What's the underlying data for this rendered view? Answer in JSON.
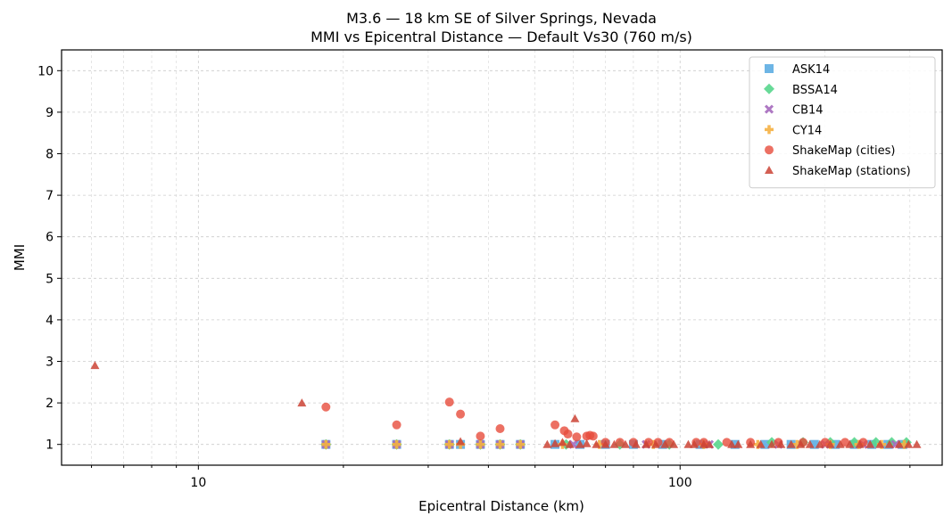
{
  "chart_data": {
    "type": "scatter",
    "title": "M3.6 — 18 km SE of Silver Springs, Nevada",
    "subtitle": "MMI vs Epicentral Distance — Default Vs30 (760 m/s)",
    "xlabel": "Epicentral Distance (km)",
    "ylabel": "MMI",
    "xscale": "log",
    "xlim": [
      5.2,
      350
    ],
    "ylim": [
      0.5,
      10.5
    ],
    "x_ticks": [
      10,
      100
    ],
    "y_ticks": [
      1,
      2,
      3,
      4,
      5,
      6,
      7,
      8,
      9,
      10
    ],
    "grid": true,
    "legend_position": "top-right",
    "series": [
      {
        "name": "ASK14",
        "marker": "square",
        "color": "#5DADE2",
        "x": [
          18.4,
          25.8,
          33.2,
          35.0,
          38.5,
          42.3,
          46.6,
          55,
          62,
          70,
          80,
          92,
          110,
          130,
          150,
          170,
          190,
          210,
          230,
          250,
          270,
          290
        ],
        "y": [
          1.0,
          1.0,
          1.0,
          1.0,
          1.0,
          1.0,
          1.0,
          1.0,
          1.0,
          1.0,
          1.0,
          1.0,
          1.0,
          1.0,
          1.0,
          1.0,
          1.0,
          1.0,
          1.0,
          1.0,
          1.0,
          1.0
        ]
      },
      {
        "name": "BSSA14",
        "marker": "diamond",
        "color": "#58D68D",
        "x": [
          18.4,
          25.8,
          33.2,
          38.5,
          42.3,
          46.6,
          58,
          75,
          95,
          120,
          155,
          180,
          205,
          230,
          255,
          275,
          295
        ],
        "y": [
          1.0,
          1.0,
          1.0,
          1.0,
          1.0,
          1.0,
          1.0,
          1.0,
          1.0,
          1.0,
          1.05,
          1.05,
          1.05,
          1.05,
          1.05,
          1.05,
          1.05
        ]
      },
      {
        "name": "CB14",
        "marker": "x",
        "color": "#A569BD",
        "x": [
          18.4,
          25.8,
          33.2,
          38.5,
          42.3,
          46.6,
          60,
          85,
          115,
          160,
          200,
          240,
          280
        ],
        "y": [
          1.0,
          1.0,
          1.0,
          1.0,
          1.0,
          1.0,
          1.0,
          1.0,
          1.0,
          1.0,
          1.0,
          1.0,
          1.0
        ]
      },
      {
        "name": "CY14",
        "marker": "plus",
        "color": "#F5B041",
        "x": [
          18.4,
          25.8,
          33.2,
          35.0,
          38.5,
          42.3,
          46.6,
          57,
          68,
          88,
          112,
          145,
          175,
          205,
          235,
          262,
          292
        ],
        "y": [
          1.0,
          1.0,
          1.0,
          1.0,
          1.0,
          1.0,
          1.0,
          1.0,
          1.0,
          1.0,
          1.0,
          1.0,
          1.0,
          1.0,
          1.0,
          1.0,
          1.0
        ]
      },
      {
        "name": "ShakeMap (cities)",
        "marker": "circle",
        "color": "#E74C3C",
        "x": [
          18.4,
          25.8,
          33.2,
          35.0,
          38.5,
          42.3,
          55.0,
          57.5,
          58.5,
          61.0,
          64.0,
          65.0,
          66.0,
          70,
          75,
          80,
          86,
          90,
          95,
          108,
          112,
          125,
          140,
          160,
          180,
          200,
          220,
          240
        ],
        "y": [
          1.9,
          1.47,
          2.02,
          1.73,
          1.2,
          1.38,
          1.47,
          1.33,
          1.25,
          1.18,
          1.2,
          1.22,
          1.2,
          1.05,
          1.05,
          1.05,
          1.05,
          1.05,
          1.05,
          1.05,
          1.05,
          1.05,
          1.05,
          1.05,
          1.05,
          1.05,
          1.05,
          1.05
        ]
      },
      {
        "name": "ShakeMap (stations)",
        "marker": "triangle",
        "color": "#CB4335",
        "x": [
          6.1,
          16.4,
          35.0,
          53,
          55,
          57,
          59,
          60.5,
          62,
          64,
          67,
          70,
          73,
          77,
          81,
          85,
          89,
          93,
          97,
          104,
          107,
          112,
          115,
          128,
          132,
          140,
          147,
          155,
          162,
          170,
          178,
          186,
          195,
          205,
          215,
          225,
          236,
          248,
          260,
          272,
          285,
          298,
          310
        ],
        "y": [
          2.9,
          2.0,
          1.07,
          1.0,
          1.02,
          1.05,
          1.0,
          1.62,
          1.0,
          1.02,
          1.0,
          1.0,
          1.0,
          1.0,
          1.0,
          1.0,
          1.0,
          1.0,
          1.0,
          1.0,
          1.0,
          1.0,
          1.0,
          1.0,
          1.0,
          1.0,
          1.0,
          1.0,
          1.0,
          1.0,
          1.0,
          1.0,
          1.0,
          1.0,
          1.0,
          1.0,
          1.0,
          1.0,
          1.0,
          1.0,
          1.0,
          1.0,
          1.0
        ]
      }
    ]
  }
}
